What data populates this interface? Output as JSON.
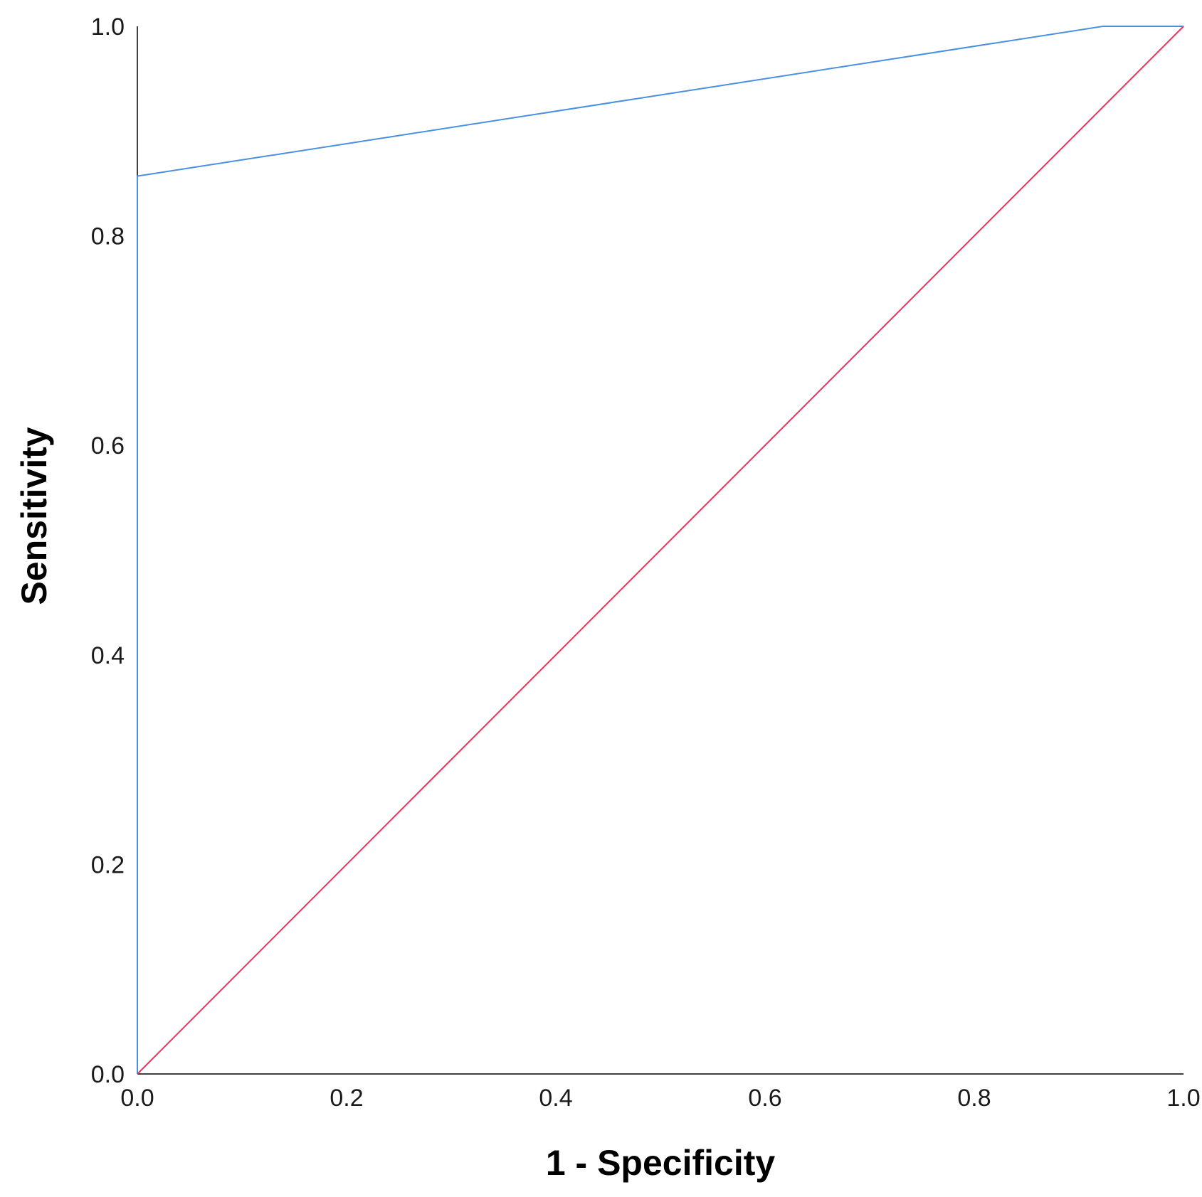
{
  "chart_data": {
    "type": "line",
    "xlabel": "1 - Specificity",
    "ylabel": "Sensitivity",
    "xlim": [
      0.0,
      1.0
    ],
    "ylim": [
      0.0,
      1.0
    ],
    "x_ticks": [
      "0.0",
      "0.2",
      "0.4",
      "0.6",
      "0.8",
      "1.0"
    ],
    "y_ticks": [
      "0.0",
      "0.2",
      "0.4",
      "0.6",
      "0.8",
      "1.0"
    ],
    "grid": false,
    "series": [
      {
        "color": "#4a90e2",
        "x": [
          0.0,
          0.0,
          0.923,
          1.0
        ],
        "y": [
          0.0,
          0.857,
          1.0,
          1.0
        ]
      },
      {
        "color": "#e8365d",
        "x": [
          0.0,
          1.0
        ],
        "y": [
          0.0,
          1.0
        ]
      }
    ]
  }
}
